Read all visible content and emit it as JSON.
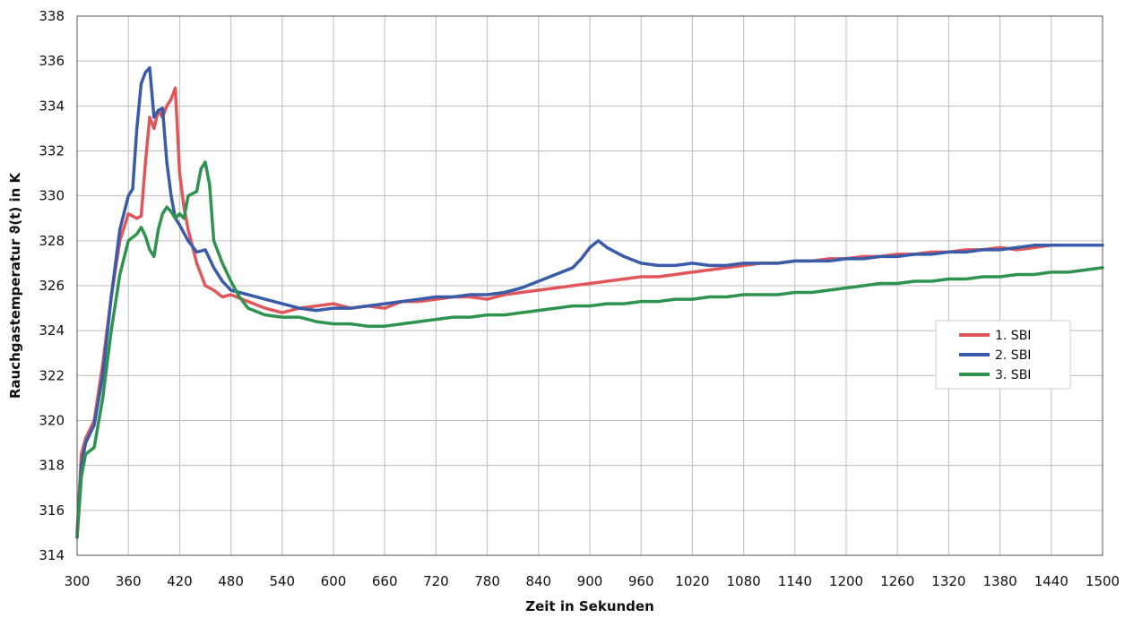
{
  "chart_data": {
    "type": "line",
    "title": "",
    "xlabel": "Zeit in Sekunden",
    "ylabel": "Rauchgastemperatur ϑ(t) in K",
    "xlim": [
      300,
      1500
    ],
    "ylim": [
      314,
      338
    ],
    "x_ticks": [
      300,
      360,
      420,
      480,
      540,
      600,
      660,
      720,
      780,
      840,
      900,
      960,
      1020,
      1080,
      1140,
      1200,
      1260,
      1320,
      1380,
      1440,
      1500
    ],
    "y_ticks": [
      314,
      316,
      318,
      320,
      322,
      324,
      326,
      328,
      330,
      332,
      334,
      336,
      338
    ],
    "grid": true,
    "legend_position": "right",
    "series": [
      {
        "name": "1. SBI",
        "color": "#e0565b",
        "points": [
          [
            300,
            315.0
          ],
          [
            305,
            318.5
          ],
          [
            310,
            319.2
          ],
          [
            320,
            320.0
          ],
          [
            330,
            322.5
          ],
          [
            340,
            325.5
          ],
          [
            350,
            328.0
          ],
          [
            360,
            329.2
          ],
          [
            370,
            329.0
          ],
          [
            375,
            329.1
          ],
          [
            380,
            331.5
          ],
          [
            385,
            333.5
          ],
          [
            390,
            333.0
          ],
          [
            395,
            333.8
          ],
          [
            400,
            333.5
          ],
          [
            405,
            334.0
          ],
          [
            410,
            334.3
          ],
          [
            415,
            334.8
          ],
          [
            420,
            331.0
          ],
          [
            425,
            329.5
          ],
          [
            430,
            328.5
          ],
          [
            440,
            327.0
          ],
          [
            450,
            326.0
          ],
          [
            460,
            325.8
          ],
          [
            470,
            325.5
          ],
          [
            480,
            325.6
          ],
          [
            500,
            325.3
          ],
          [
            520,
            325.0
          ],
          [
            540,
            324.8
          ],
          [
            560,
            325.0
          ],
          [
            580,
            325.1
          ],
          [
            600,
            325.2
          ],
          [
            620,
            325.0
          ],
          [
            640,
            325.1
          ],
          [
            660,
            325.0
          ],
          [
            680,
            325.3
          ],
          [
            700,
            325.3
          ],
          [
            720,
            325.4
          ],
          [
            740,
            325.5
          ],
          [
            760,
            325.5
          ],
          [
            780,
            325.4
          ],
          [
            800,
            325.6
          ],
          [
            820,
            325.7
          ],
          [
            840,
            325.8
          ],
          [
            860,
            325.9
          ],
          [
            880,
            326.0
          ],
          [
            900,
            326.1
          ],
          [
            920,
            326.2
          ],
          [
            940,
            326.3
          ],
          [
            960,
            326.4
          ],
          [
            980,
            326.4
          ],
          [
            1000,
            326.5
          ],
          [
            1020,
            326.6
          ],
          [
            1040,
            326.7
          ],
          [
            1060,
            326.8
          ],
          [
            1080,
            326.9
          ],
          [
            1100,
            327.0
          ],
          [
            1120,
            327.0
          ],
          [
            1140,
            327.1
          ],
          [
            1160,
            327.1
          ],
          [
            1180,
            327.2
          ],
          [
            1200,
            327.2
          ],
          [
            1220,
            327.3
          ],
          [
            1240,
            327.3
          ],
          [
            1260,
            327.4
          ],
          [
            1280,
            327.4
          ],
          [
            1300,
            327.5
          ],
          [
            1320,
            327.5
          ],
          [
            1340,
            327.6
          ],
          [
            1360,
            327.6
          ],
          [
            1380,
            327.7
          ],
          [
            1400,
            327.6
          ],
          [
            1420,
            327.7
          ],
          [
            1440,
            327.8
          ],
          [
            1460,
            327.8
          ],
          [
            1480,
            327.8
          ],
          [
            1500,
            327.8
          ]
        ]
      },
      {
        "name": "2. SBI",
        "color": "#3a5ba8",
        "points": [
          [
            300,
            314.8
          ],
          [
            305,
            318.0
          ],
          [
            310,
            319.0
          ],
          [
            320,
            319.8
          ],
          [
            330,
            322.0
          ],
          [
            340,
            325.5
          ],
          [
            350,
            328.5
          ],
          [
            360,
            330.0
          ],
          [
            365,
            330.3
          ],
          [
            370,
            333.0
          ],
          [
            375,
            335.0
          ],
          [
            380,
            335.5
          ],
          [
            385,
            335.7
          ],
          [
            390,
            333.5
          ],
          [
            395,
            333.8
          ],
          [
            400,
            333.9
          ],
          [
            405,
            331.5
          ],
          [
            410,
            330.0
          ],
          [
            415,
            329.0
          ],
          [
            420,
            328.7
          ],
          [
            430,
            328.0
          ],
          [
            440,
            327.5
          ],
          [
            450,
            327.6
          ],
          [
            460,
            326.8
          ],
          [
            470,
            326.2
          ],
          [
            480,
            325.8
          ],
          [
            500,
            325.6
          ],
          [
            520,
            325.4
          ],
          [
            540,
            325.2
          ],
          [
            560,
            325.0
          ],
          [
            580,
            324.9
          ],
          [
            600,
            325.0
          ],
          [
            620,
            325.0
          ],
          [
            640,
            325.1
          ],
          [
            660,
            325.2
          ],
          [
            680,
            325.3
          ],
          [
            700,
            325.4
          ],
          [
            720,
            325.5
          ],
          [
            740,
            325.5
          ],
          [
            760,
            325.6
          ],
          [
            780,
            325.6
          ],
          [
            800,
            325.7
          ],
          [
            820,
            325.9
          ],
          [
            840,
            326.2
          ],
          [
            860,
            326.5
          ],
          [
            880,
            326.8
          ],
          [
            890,
            327.2
          ],
          [
            900,
            327.7
          ],
          [
            910,
            328.0
          ],
          [
            920,
            327.7
          ],
          [
            940,
            327.3
          ],
          [
            960,
            327.0
          ],
          [
            980,
            326.9
          ],
          [
            1000,
            326.9
          ],
          [
            1020,
            327.0
          ],
          [
            1040,
            326.9
          ],
          [
            1060,
            326.9
          ],
          [
            1080,
            327.0
          ],
          [
            1100,
            327.0
          ],
          [
            1120,
            327.0
          ],
          [
            1140,
            327.1
          ],
          [
            1160,
            327.1
          ],
          [
            1180,
            327.1
          ],
          [
            1200,
            327.2
          ],
          [
            1220,
            327.2
          ],
          [
            1240,
            327.3
          ],
          [
            1260,
            327.3
          ],
          [
            1280,
            327.4
          ],
          [
            1300,
            327.4
          ],
          [
            1320,
            327.5
          ],
          [
            1340,
            327.5
          ],
          [
            1360,
            327.6
          ],
          [
            1380,
            327.6
          ],
          [
            1400,
            327.7
          ],
          [
            1420,
            327.8
          ],
          [
            1440,
            327.8
          ],
          [
            1460,
            327.8
          ],
          [
            1480,
            327.8
          ],
          [
            1500,
            327.8
          ]
        ]
      },
      {
        "name": "3. SBI",
        "color": "#2f9350",
        "points": [
          [
            300,
            314.8
          ],
          [
            305,
            317.5
          ],
          [
            310,
            318.5
          ],
          [
            320,
            318.8
          ],
          [
            330,
            321.0
          ],
          [
            340,
            324.0
          ],
          [
            350,
            326.5
          ],
          [
            360,
            328.0
          ],
          [
            370,
            328.3
          ],
          [
            375,
            328.6
          ],
          [
            380,
            328.2
          ],
          [
            385,
            327.6
          ],
          [
            390,
            327.3
          ],
          [
            395,
            328.5
          ],
          [
            400,
            329.2
          ],
          [
            405,
            329.5
          ],
          [
            410,
            329.3
          ],
          [
            415,
            329.0
          ],
          [
            420,
            329.2
          ],
          [
            425,
            329.0
          ],
          [
            430,
            330.0
          ],
          [
            440,
            330.2
          ],
          [
            445,
            331.2
          ],
          [
            450,
            331.5
          ],
          [
            455,
            330.5
          ],
          [
            460,
            328.0
          ],
          [
            470,
            327.0
          ],
          [
            480,
            326.2
          ],
          [
            490,
            325.5
          ],
          [
            500,
            325.0
          ],
          [
            520,
            324.7
          ],
          [
            540,
            324.6
          ],
          [
            560,
            324.6
          ],
          [
            580,
            324.4
          ],
          [
            600,
            324.3
          ],
          [
            620,
            324.3
          ],
          [
            640,
            324.2
          ],
          [
            660,
            324.2
          ],
          [
            680,
            324.3
          ],
          [
            700,
            324.4
          ],
          [
            720,
            324.5
          ],
          [
            740,
            324.6
          ],
          [
            760,
            324.6
          ],
          [
            780,
            324.7
          ],
          [
            800,
            324.7
          ],
          [
            820,
            324.8
          ],
          [
            840,
            324.9
          ],
          [
            860,
            325.0
          ],
          [
            880,
            325.1
          ],
          [
            900,
            325.1
          ],
          [
            920,
            325.2
          ],
          [
            940,
            325.2
          ],
          [
            960,
            325.3
          ],
          [
            980,
            325.3
          ],
          [
            1000,
            325.4
          ],
          [
            1020,
            325.4
          ],
          [
            1040,
            325.5
          ],
          [
            1060,
            325.5
          ],
          [
            1080,
            325.6
          ],
          [
            1100,
            325.6
          ],
          [
            1120,
            325.6
          ],
          [
            1140,
            325.7
          ],
          [
            1160,
            325.7
          ],
          [
            1180,
            325.8
          ],
          [
            1200,
            325.9
          ],
          [
            1220,
            326.0
          ],
          [
            1240,
            326.1
          ],
          [
            1260,
            326.1
          ],
          [
            1280,
            326.2
          ],
          [
            1300,
            326.2
          ],
          [
            1320,
            326.3
          ],
          [
            1340,
            326.3
          ],
          [
            1360,
            326.4
          ],
          [
            1380,
            326.4
          ],
          [
            1400,
            326.5
          ],
          [
            1420,
            326.5
          ],
          [
            1440,
            326.6
          ],
          [
            1460,
            326.6
          ],
          [
            1480,
            326.7
          ],
          [
            1500,
            326.8
          ]
        ]
      }
    ]
  }
}
